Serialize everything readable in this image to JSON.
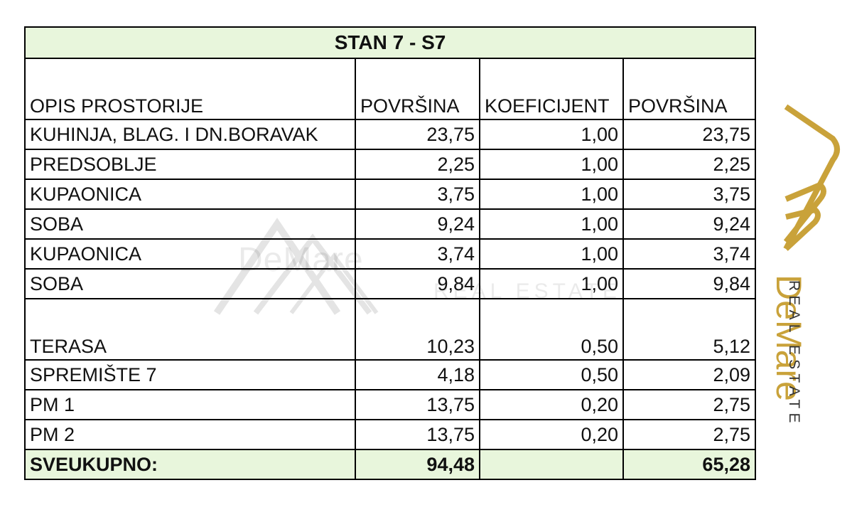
{
  "table": {
    "title": "STAN 7 - S7",
    "headers": [
      "OPIS PROSTORIJE",
      "POVRŠINA",
      "KOEFICIJENT",
      "POVRŠINA"
    ],
    "rows": [
      [
        "KUHINJA, BLAG. I DN.BORAVAK",
        "23,75",
        "1,00",
        "23,75"
      ],
      [
        "PREDSOBLJE",
        "2,25",
        "1,00",
        "2,25"
      ],
      [
        "KUPAONICA",
        "3,75",
        "1,00",
        "3,75"
      ],
      [
        "SOBA",
        "9,24",
        "1,00",
        "9,24"
      ],
      [
        "KUPAONICA",
        "3,74",
        "1,00",
        "3,74"
      ],
      [
        "SOBA",
        "9,84",
        "1,00",
        "9,84"
      ],
      [
        "TERASA",
        "10,23",
        "0,50",
        "5,12"
      ],
      [
        "SPREMIŠTE 7",
        "4,18",
        "0,50",
        "2,09"
      ],
      [
        "PM 1",
        "13,75",
        "0,20",
        "2,75"
      ],
      [
        "PM 2",
        "13,75",
        "0,20",
        "2,75"
      ]
    ],
    "total": [
      "SVEUKUPNO:",
      "94,48",
      "",
      "65,28"
    ]
  },
  "brand": {
    "name": "DeMare",
    "sub": "REAL ESTATE",
    "watermark_name": "DeMare",
    "watermark_sub": "REAL ESTATE",
    "gold": "#c9a23a",
    "title_bg": "#e8f6dc"
  },
  "icons": [
    "demare-logo-icon",
    "watermark-logo-icon"
  ]
}
